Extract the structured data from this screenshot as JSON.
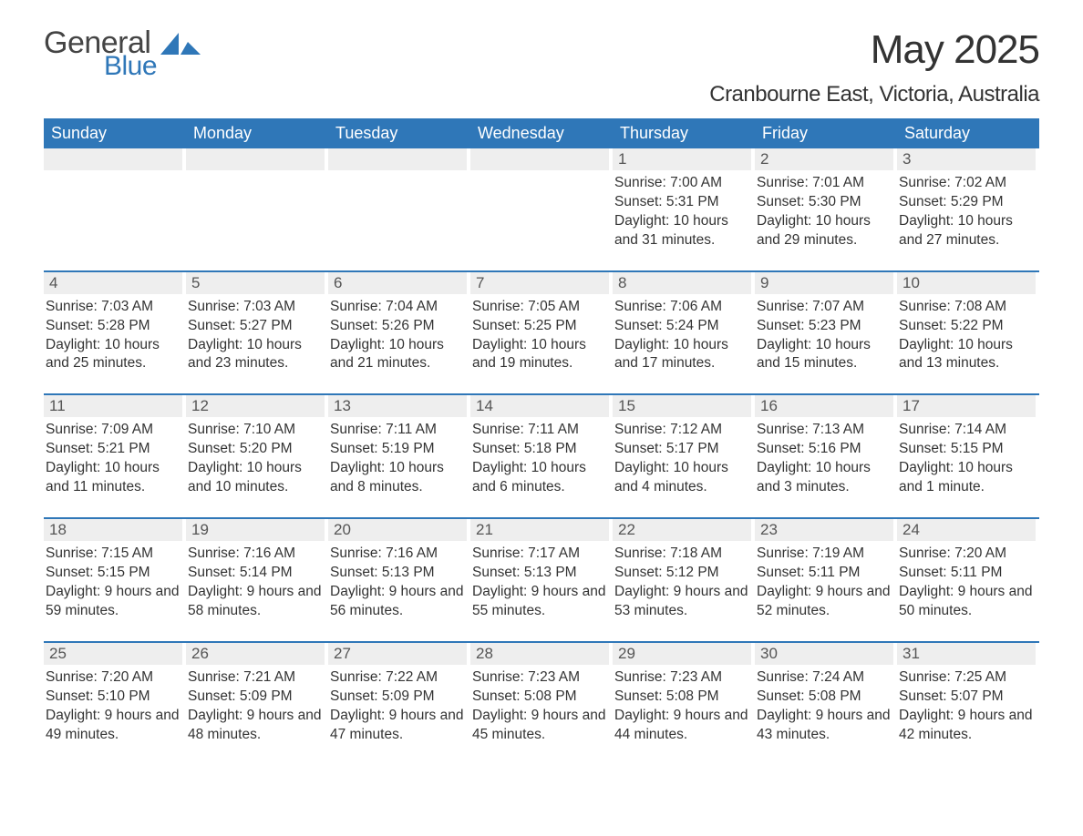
{
  "logo": {
    "word1": "General",
    "word2": "Blue",
    "icon_color": "#2f77b8"
  },
  "title": "May 2025",
  "location": "Cranbourne East, Victoria, Australia",
  "weekdays": [
    "Sunday",
    "Monday",
    "Tuesday",
    "Wednesday",
    "Thursday",
    "Friday",
    "Saturday"
  ],
  "colors": {
    "header_bg": "#2f77b8",
    "header_text": "#ffffff",
    "daynum_bg": "#eeeeee",
    "body_text": "#333333",
    "week_divider": "#2f77b8"
  },
  "labels": {
    "sunrise": "Sunrise:",
    "sunset": "Sunset:",
    "daylight": "Daylight:"
  },
  "weeks": [
    [
      null,
      null,
      null,
      null,
      {
        "n": "1",
        "sunrise": "7:00 AM",
        "sunset": "5:31 PM",
        "daylight": "10 hours and 31 minutes."
      },
      {
        "n": "2",
        "sunrise": "7:01 AM",
        "sunset": "5:30 PM",
        "daylight": "10 hours and 29 minutes."
      },
      {
        "n": "3",
        "sunrise": "7:02 AM",
        "sunset": "5:29 PM",
        "daylight": "10 hours and 27 minutes."
      }
    ],
    [
      {
        "n": "4",
        "sunrise": "7:03 AM",
        "sunset": "5:28 PM",
        "daylight": "10 hours and 25 minutes."
      },
      {
        "n": "5",
        "sunrise": "7:03 AM",
        "sunset": "5:27 PM",
        "daylight": "10 hours and 23 minutes."
      },
      {
        "n": "6",
        "sunrise": "7:04 AM",
        "sunset": "5:26 PM",
        "daylight": "10 hours and 21 minutes."
      },
      {
        "n": "7",
        "sunrise": "7:05 AM",
        "sunset": "5:25 PM",
        "daylight": "10 hours and 19 minutes."
      },
      {
        "n": "8",
        "sunrise": "7:06 AM",
        "sunset": "5:24 PM",
        "daylight": "10 hours and 17 minutes."
      },
      {
        "n": "9",
        "sunrise": "7:07 AM",
        "sunset": "5:23 PM",
        "daylight": "10 hours and 15 minutes."
      },
      {
        "n": "10",
        "sunrise": "7:08 AM",
        "sunset": "5:22 PM",
        "daylight": "10 hours and 13 minutes."
      }
    ],
    [
      {
        "n": "11",
        "sunrise": "7:09 AM",
        "sunset": "5:21 PM",
        "daylight": "10 hours and 11 minutes."
      },
      {
        "n": "12",
        "sunrise": "7:10 AM",
        "sunset": "5:20 PM",
        "daylight": "10 hours and 10 minutes."
      },
      {
        "n": "13",
        "sunrise": "7:11 AM",
        "sunset": "5:19 PM",
        "daylight": "10 hours and 8 minutes."
      },
      {
        "n": "14",
        "sunrise": "7:11 AM",
        "sunset": "5:18 PM",
        "daylight": "10 hours and 6 minutes."
      },
      {
        "n": "15",
        "sunrise": "7:12 AM",
        "sunset": "5:17 PM",
        "daylight": "10 hours and 4 minutes."
      },
      {
        "n": "16",
        "sunrise": "7:13 AM",
        "sunset": "5:16 PM",
        "daylight": "10 hours and 3 minutes."
      },
      {
        "n": "17",
        "sunrise": "7:14 AM",
        "sunset": "5:15 PM",
        "daylight": "10 hours and 1 minute."
      }
    ],
    [
      {
        "n": "18",
        "sunrise": "7:15 AM",
        "sunset": "5:15 PM",
        "daylight": "9 hours and 59 minutes."
      },
      {
        "n": "19",
        "sunrise": "7:16 AM",
        "sunset": "5:14 PM",
        "daylight": "9 hours and 58 minutes."
      },
      {
        "n": "20",
        "sunrise": "7:16 AM",
        "sunset": "5:13 PM",
        "daylight": "9 hours and 56 minutes."
      },
      {
        "n": "21",
        "sunrise": "7:17 AM",
        "sunset": "5:13 PM",
        "daylight": "9 hours and 55 minutes."
      },
      {
        "n": "22",
        "sunrise": "7:18 AM",
        "sunset": "5:12 PM",
        "daylight": "9 hours and 53 minutes."
      },
      {
        "n": "23",
        "sunrise": "7:19 AM",
        "sunset": "5:11 PM",
        "daylight": "9 hours and 52 minutes."
      },
      {
        "n": "24",
        "sunrise": "7:20 AM",
        "sunset": "5:11 PM",
        "daylight": "9 hours and 50 minutes."
      }
    ],
    [
      {
        "n": "25",
        "sunrise": "7:20 AM",
        "sunset": "5:10 PM",
        "daylight": "9 hours and 49 minutes."
      },
      {
        "n": "26",
        "sunrise": "7:21 AM",
        "sunset": "5:09 PM",
        "daylight": "9 hours and 48 minutes."
      },
      {
        "n": "27",
        "sunrise": "7:22 AM",
        "sunset": "5:09 PM",
        "daylight": "9 hours and 47 minutes."
      },
      {
        "n": "28",
        "sunrise": "7:23 AM",
        "sunset": "5:08 PM",
        "daylight": "9 hours and 45 minutes."
      },
      {
        "n": "29",
        "sunrise": "7:23 AM",
        "sunset": "5:08 PM",
        "daylight": "9 hours and 44 minutes."
      },
      {
        "n": "30",
        "sunrise": "7:24 AM",
        "sunset": "5:08 PM",
        "daylight": "9 hours and 43 minutes."
      },
      {
        "n": "31",
        "sunrise": "7:25 AM",
        "sunset": "5:07 PM",
        "daylight": "9 hours and 42 minutes."
      }
    ]
  ]
}
